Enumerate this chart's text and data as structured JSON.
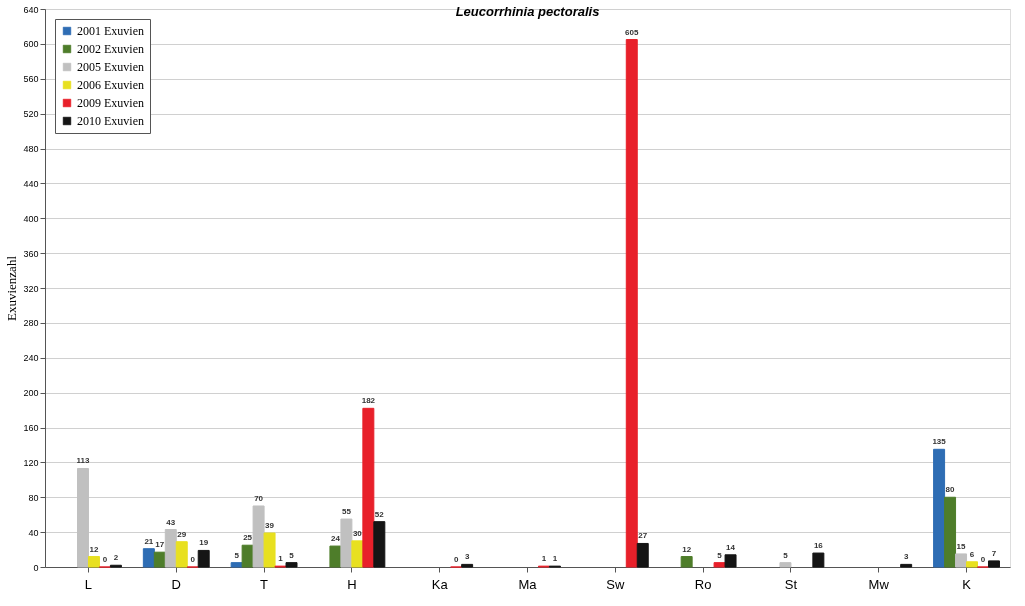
{
  "chart_data": {
    "type": "bar",
    "title": "Leucorrhinia pectoralis",
    "ylabel": "Exuvienzahl",
    "categories": [
      "L",
      "D",
      "T",
      "H",
      "Ka",
      "Ma",
      "Sw",
      "Ro",
      "St",
      "Mw",
      "K"
    ],
    "series": [
      {
        "name": "2001 Exuvien",
        "color": "#2e6db4",
        "values": [
          null,
          21,
          5,
          null,
          null,
          null,
          null,
          null,
          null,
          null,
          135
        ]
      },
      {
        "name": "2002 Exuvien",
        "color": "#4e7d2a",
        "values": [
          null,
          17,
          25,
          24,
          null,
          null,
          null,
          12,
          null,
          null,
          80
        ]
      },
      {
        "name": "2005 Exuvien",
        "color": "#c0c0c0",
        "values": [
          113,
          43,
          70,
          55,
          null,
          null,
          null,
          null,
          5,
          null,
          15
        ]
      },
      {
        "name": "2006 Exuvien",
        "color": "#e8e020",
        "values": [
          12,
          29,
          39,
          30,
          null,
          null,
          null,
          null,
          null,
          null,
          6
        ]
      },
      {
        "name": "2009 Exuvien",
        "color": "#e8202a",
        "values": [
          0,
          0,
          1,
          182,
          0,
          1,
          605,
          5,
          null,
          null,
          0
        ]
      },
      {
        "name": "2010 Exuvien",
        "color": "#151515",
        "values": [
          2,
          19,
          5,
          52,
          3,
          1,
          27,
          14,
          16,
          3,
          7
        ]
      }
    ],
    "ylim": [
      0,
      640
    ],
    "yticks": [
      0,
      40,
      80,
      120,
      160,
      200,
      240,
      280,
      320,
      360,
      400,
      440,
      480,
      520,
      560,
      600,
      640
    ],
    "grid": "y",
    "legend": "top left",
    "data_labels": true
  }
}
